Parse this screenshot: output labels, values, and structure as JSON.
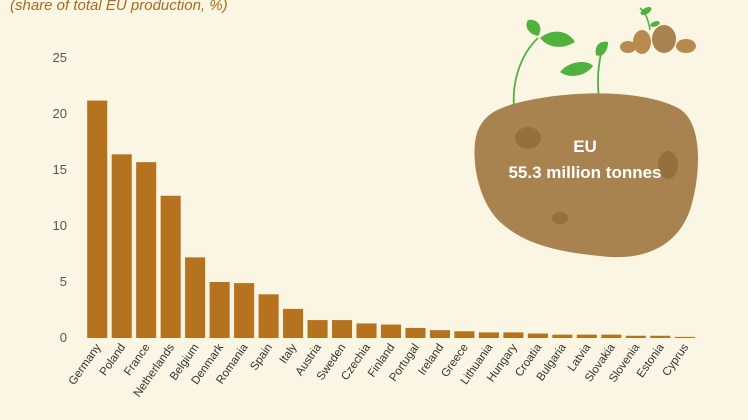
{
  "subtitle": "(share of total EU production, %)",
  "total": {
    "label": "EU",
    "value": "55.3 million tonnes"
  },
  "colors": {
    "bar": "#b5721f",
    "background": "#fbf6e3",
    "potato": "#a8824f",
    "leaf": "#4fb23d"
  },
  "icons": [
    "potato-icon",
    "sprout-icon",
    "small-potatoes-icon"
  ],
  "chart_data": {
    "type": "bar",
    "subtitle": "(share of total EU production, %)",
    "categories": [
      "Germany",
      "Poland",
      "France",
      "Netherlands",
      "Belgium",
      "Denmark",
      "Romania",
      "Spain",
      "Italy",
      "Austria",
      "Sweden",
      "Czechia",
      "Finland",
      "Portugal",
      "Ireland",
      "Greece",
      "Lithuania",
      "Hungary",
      "Croatia",
      "Bulgaria",
      "Latvia",
      "Slovakia",
      "Slovenia",
      "Estonia",
      "Cyprus"
    ],
    "values": [
      21.2,
      16.4,
      15.7,
      12.7,
      7.2,
      5.0,
      4.9,
      3.9,
      2.6,
      1.6,
      1.6,
      1.3,
      1.2,
      0.9,
      0.7,
      0.6,
      0.5,
      0.5,
      0.4,
      0.3,
      0.3,
      0.3,
      0.2,
      0.2,
      0.1
    ],
    "yticks": [
      0,
      5,
      10,
      15,
      20,
      25
    ],
    "ylim": [
      0,
      25
    ],
    "grid": false,
    "legend": "none"
  }
}
